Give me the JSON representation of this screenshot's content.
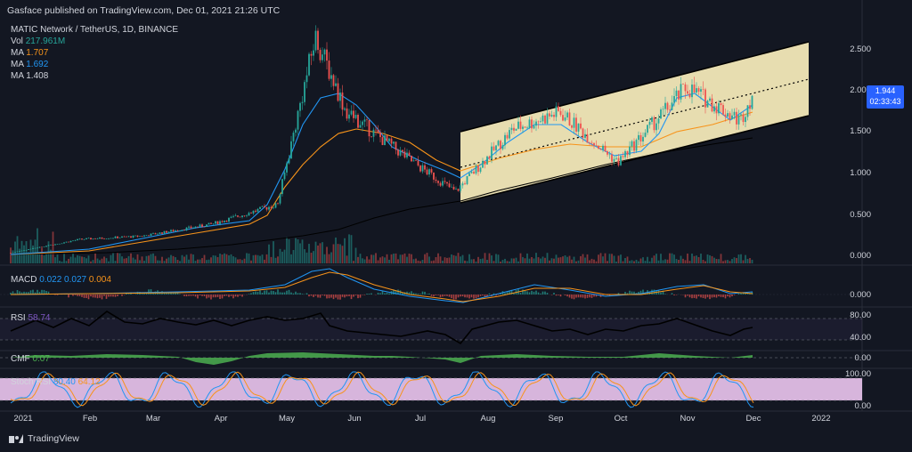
{
  "header": {
    "text": "Gasface published on TradingView.com, Dec 01, 2021 21:26 UTC"
  },
  "legend": {
    "title": "MATIC Network / TetherUS, 1D, BINANCE",
    "vol_label": "Vol",
    "vol_value": "217.961M",
    "ma1_label": "MA",
    "ma1_value": "1.707",
    "ma2_label": "MA",
    "ma2_value": "1.692",
    "ma3_label": "MA",
    "ma3_value": "1.408"
  },
  "price_axis": [
    "2.500",
    "2.000",
    "1.500",
    "1.000",
    "0.500",
    "0.000"
  ],
  "price_badge": {
    "price": "1.944",
    "countdown": "02:33:43"
  },
  "panels": {
    "macd": {
      "label": "MACD",
      "v1": "0.022",
      "v2": "0.027",
      "v3": "0.004",
      "axis": "0.000"
    },
    "rsi": {
      "label": "RSI",
      "value": "58.74",
      "axis_top": "80.00",
      "axis_bottom": "40.00"
    },
    "cmf": {
      "label": "CMF",
      "value": "0.07",
      "axis": "0.00"
    },
    "stoch": {
      "label": "Stoch RSI",
      "v1": "80.40",
      "v2": "64.12",
      "axis_top": "100.00",
      "axis_bottom": "0.00"
    }
  },
  "time_axis": [
    "2021",
    "Feb",
    "Mar",
    "Apr",
    "May",
    "Jun",
    "Jul",
    "Aug",
    "Sep",
    "Oct",
    "Nov",
    "Dec",
    "2022"
  ],
  "footer": {
    "brand": "TradingView"
  },
  "colors": {
    "background": "#131722",
    "up": "#26a69a",
    "down": "#ef5350",
    "ma_orange": "#f7931a",
    "ma_blue": "#2196f3",
    "channel_fill": "#fff3c0",
    "cmf": "#4caf50",
    "stoch_bg": "#e1bee7"
  },
  "chart_data": {
    "type": "candlestick",
    "series": [
      {
        "name": "",
        "points": [
          {
            "x": "2021-01-01",
            "y": 0.02
          },
          {
            "x": "2021-02-01",
            "y": 0.18
          },
          {
            "x": "2021-03-01",
            "y": 0.22
          },
          {
            "x": "2021-04-01",
            "y": 0.36
          },
          {
            "x": "2021-05-01",
            "y": 0.6
          },
          {
            "x": "2021-05-18",
            "y": 2.6
          },
          {
            "x": "2021-06-01",
            "y": 1.7
          },
          {
            "x": "2021-07-01",
            "y": 1.1
          },
          {
            "x": "2021-07-20",
            "y": 0.75
          },
          {
            "x": "2021-08-15",
            "y": 1.5
          },
          {
            "x": "2021-09-05",
            "y": 1.7
          },
          {
            "x": "2021-10-01",
            "y": 1.1
          },
          {
            "x": "2021-11-01",
            "y": 2.0
          },
          {
            "x": "2021-11-25",
            "y": 1.6
          },
          {
            "x": "2021-12-01",
            "y": 1.94
          }
        ]
      }
    ],
    "ylim": [
      0,
      2.7
    ]
  }
}
